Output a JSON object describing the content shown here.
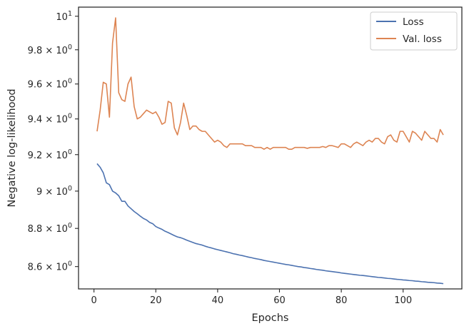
{
  "chart_data": {
    "type": "line",
    "xlabel": "Epochs",
    "ylabel": "Negative log-likelihood",
    "xlim": [
      -5,
      119
    ],
    "ylim": [
      8.485,
      10.055
    ],
    "yscale": "log",
    "grid": false,
    "legend_position": "top-right",
    "x_ticks": [
      {
        "value": 0,
        "label": "0"
      },
      {
        "value": 20,
        "label": "20"
      },
      {
        "value": 40,
        "label": "40"
      },
      {
        "value": 60,
        "label": "60"
      },
      {
        "value": 80,
        "label": "80"
      },
      {
        "value": 100,
        "label": "100"
      }
    ],
    "y_ticks": [
      {
        "value": 8.6,
        "base": "8.6",
        "op": " × ",
        "b10": "10",
        "exp": "0"
      },
      {
        "value": 8.8,
        "base": "8.8",
        "op": " × ",
        "b10": "10",
        "exp": "0"
      },
      {
        "value": 9.0,
        "base": "9",
        "op": " × ",
        "b10": "10",
        "exp": "0"
      },
      {
        "value": 9.2,
        "base": "9.2",
        "op": " × ",
        "b10": "10",
        "exp": "0"
      },
      {
        "value": 9.4,
        "base": "9.4",
        "op": " × ",
        "b10": "10",
        "exp": "0"
      },
      {
        "value": 9.6,
        "base": "9.6",
        "op": " × ",
        "b10": "10",
        "exp": "0"
      },
      {
        "value": 9.8,
        "base": "9.8",
        "op": " × ",
        "b10": "10",
        "exp": "0"
      },
      {
        "value": 10.0,
        "base": "",
        "op": "",
        "b10": "10",
        "exp": "1"
      }
    ],
    "series": [
      {
        "name": "Loss",
        "color": "#4c72b0",
        "x": [
          1,
          2,
          3,
          4,
          5,
          6,
          7,
          8,
          9,
          10,
          11,
          12,
          13,
          14,
          15,
          16,
          17,
          18,
          19,
          20,
          21,
          22,
          23,
          24,
          25,
          26,
          27,
          28,
          29,
          30,
          31,
          32,
          33,
          34,
          35,
          36,
          37,
          38,
          39,
          40,
          41,
          42,
          43,
          44,
          45,
          46,
          47,
          48,
          49,
          50,
          51,
          52,
          53,
          54,
          55,
          56,
          57,
          58,
          59,
          60,
          61,
          62,
          63,
          64,
          65,
          66,
          67,
          68,
          69,
          70,
          71,
          72,
          73,
          74,
          75,
          76,
          77,
          78,
          79,
          80,
          81,
          82,
          83,
          84,
          85,
          86,
          87,
          88,
          89,
          90,
          91,
          92,
          93,
          94,
          95,
          96,
          97,
          98,
          99,
          100,
          101,
          102,
          103,
          104,
          105,
          106,
          107,
          108,
          109,
          110,
          111,
          112,
          113
        ],
        "y": [
          9.15,
          9.13,
          9.1,
          9.045,
          9.035,
          9.0,
          8.99,
          8.975,
          8.945,
          8.945,
          8.92,
          8.905,
          8.89,
          8.878,
          8.865,
          8.853,
          8.845,
          8.832,
          8.825,
          8.81,
          8.802,
          8.795,
          8.785,
          8.778,
          8.77,
          8.762,
          8.755,
          8.751,
          8.745,
          8.738,
          8.732,
          8.726,
          8.72,
          8.716,
          8.712,
          8.706,
          8.701,
          8.697,
          8.692,
          8.688,
          8.684,
          8.68,
          8.676,
          8.672,
          8.667,
          8.664,
          8.66,
          8.657,
          8.653,
          8.649,
          8.646,
          8.642,
          8.639,
          8.636,
          8.632,
          8.629,
          8.626,
          8.623,
          8.62,
          8.617,
          8.614,
          8.611,
          8.609,
          8.606,
          8.603,
          8.6,
          8.598,
          8.595,
          8.593,
          8.59,
          8.588,
          8.585,
          8.583,
          8.581,
          8.578,
          8.576,
          8.574,
          8.572,
          8.57,
          8.567,
          8.565,
          8.563,
          8.561,
          8.559,
          8.557,
          8.555,
          8.554,
          8.552,
          8.55,
          8.548,
          8.546,
          8.544,
          8.543,
          8.541,
          8.539,
          8.538,
          8.536,
          8.534,
          8.533,
          8.531,
          8.53,
          8.528,
          8.527,
          8.525,
          8.524,
          8.522,
          8.521,
          8.519,
          8.518,
          8.517,
          8.515,
          8.514,
          8.512
        ]
      },
      {
        "name": "Val. loss",
        "color": "#dd8452",
        "x": [
          1,
          2,
          3,
          4,
          5,
          6,
          7,
          8,
          9,
          10,
          11,
          12,
          13,
          14,
          15,
          16,
          17,
          18,
          19,
          20,
          21,
          22,
          23,
          24,
          25,
          26,
          27,
          28,
          29,
          30,
          31,
          32,
          33,
          34,
          35,
          36,
          37,
          38,
          39,
          40,
          41,
          42,
          43,
          44,
          45,
          46,
          47,
          48,
          49,
          50,
          51,
          52,
          53,
          54,
          55,
          56,
          57,
          58,
          59,
          60,
          61,
          62,
          63,
          64,
          65,
          66,
          67,
          68,
          69,
          70,
          71,
          72,
          73,
          74,
          75,
          76,
          77,
          78,
          79,
          80,
          81,
          82,
          83,
          84,
          85,
          86,
          87,
          88,
          89,
          90,
          91,
          92,
          93,
          94,
          95,
          96,
          97,
          98,
          99,
          100,
          101,
          102,
          103,
          104,
          105,
          106,
          107,
          108,
          109,
          110,
          111,
          112,
          113
        ],
        "y": [
          9.33,
          9.45,
          9.61,
          9.6,
          9.41,
          9.84,
          9.99,
          9.55,
          9.51,
          9.5,
          9.6,
          9.64,
          9.47,
          9.4,
          9.41,
          9.43,
          9.45,
          9.44,
          9.43,
          9.44,
          9.41,
          9.37,
          9.38,
          9.5,
          9.49,
          9.35,
          9.31,
          9.38,
          9.49,
          9.42,
          9.34,
          9.36,
          9.36,
          9.34,
          9.33,
          9.33,
          9.31,
          9.29,
          9.27,
          9.28,
          9.27,
          9.25,
          9.24,
          9.26,
          9.26,
          9.26,
          9.26,
          9.26,
          9.25,
          9.25,
          9.25,
          9.24,
          9.24,
          9.24,
          9.23,
          9.24,
          9.23,
          9.24,
          9.24,
          9.24,
          9.24,
          9.24,
          9.23,
          9.23,
          9.24,
          9.24,
          9.24,
          9.24,
          9.235,
          9.24,
          9.24,
          9.24,
          9.24,
          9.245,
          9.24,
          9.25,
          9.25,
          9.245,
          9.24,
          9.26,
          9.26,
          9.25,
          9.24,
          9.26,
          9.27,
          9.26,
          9.25,
          9.27,
          9.28,
          9.27,
          9.29,
          9.29,
          9.27,
          9.26,
          9.3,
          9.31,
          9.28,
          9.27,
          9.33,
          9.33,
          9.3,
          9.27,
          9.33,
          9.32,
          9.3,
          9.28,
          9.33,
          9.31,
          9.29,
          9.29,
          9.27,
          9.34,
          9.31
        ]
      }
    ]
  }
}
